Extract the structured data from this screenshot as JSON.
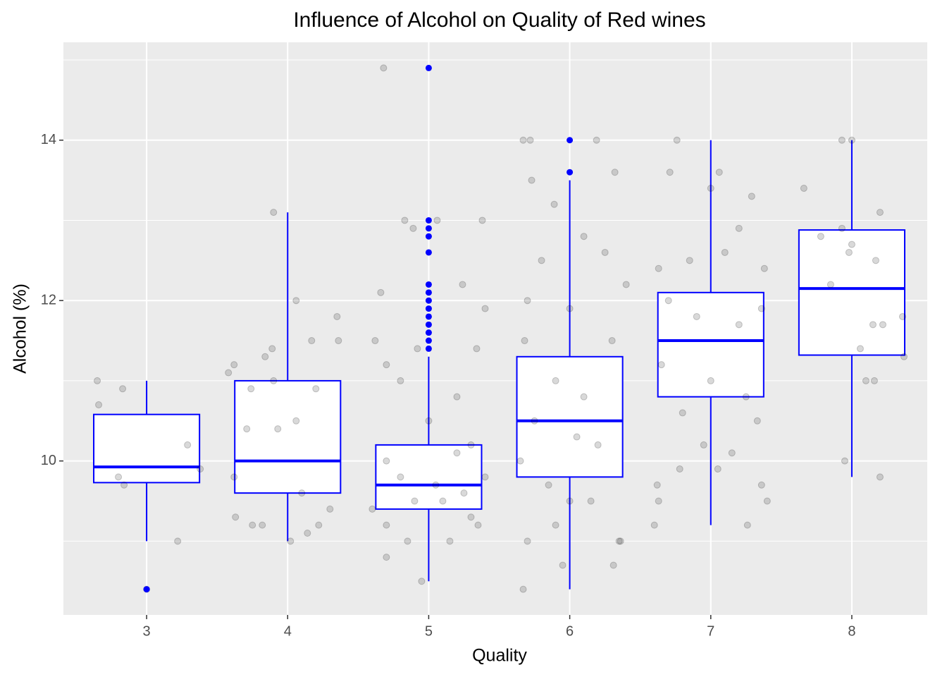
{
  "chart_data": {
    "type": "box",
    "title": "Influence of Alcohol on Quality of Red wines",
    "x_label": "Quality",
    "y_label": "Alcohol (%)",
    "x": [
      3,
      4,
      5,
      6,
      7,
      8
    ],
    "q1": [
      9.73,
      9.6,
      9.4,
      9.8,
      10.8,
      11.32
    ],
    "median": [
      9.925,
      10.0,
      9.7,
      10.5,
      11.5,
      12.15
    ],
    "q3": [
      10.58,
      11.0,
      10.2,
      11.3,
      12.1,
      12.88
    ],
    "whisker_low": [
      9.0,
      9.0,
      8.5,
      8.4,
      9.2,
      9.8
    ],
    "whisker_high": [
      11.0,
      13.1,
      11.3,
      13.5,
      14.0,
      14.0
    ],
    "outliers": [
      [
        8.4
      ],
      [],
      [
        11.4,
        11.5,
        11.6,
        11.7,
        11.8,
        11.9,
        12.0,
        12.1,
        12.2,
        12.6,
        12.8,
        12.9,
        13.0,
        14.9
      ],
      [
        13.6,
        14.0
      ],
      [],
      []
    ],
    "color": "#0000ff",
    "points": {
      "color": "#000000",
      "x": [
        2.65,
        2.66,
        2.83,
        2.8,
        2.84,
        3.29,
        3.22,
        3.38,
        3.0,
        3.58,
        3.62,
        3.84,
        3.89,
        3.9,
        3.9,
        4.06,
        4.17,
        4.35,
        4.36,
        3.71,
        3.93,
        4.06,
        3.74,
        4.2,
        3.62,
        3.75,
        3.82,
        4.1,
        4.14,
        4.22,
        4.3,
        3.63,
        4.02,
        4.68,
        4.66,
        4.83,
        4.89,
        5.06,
        5.38,
        5.24,
        5.4,
        4.7,
        4.62,
        4.8,
        5.0,
        5.2,
        5.3,
        4.7,
        4.9,
        5.1,
        5.3,
        4.7,
        4.85,
        5.15,
        5.35,
        4.95,
        4.7,
        5.2,
        4.8,
        5.05,
        5.25,
        4.6,
        5.4,
        4.92,
        5.34,
        5.67,
        5.72,
        6.19,
        6.32,
        5.73,
        5.89,
        6.4,
        5.8,
        6.1,
        6.25,
        5.7,
        6.0,
        5.68,
        6.3,
        5.9,
        6.1,
        5.75,
        6.2,
        5.65,
        6.0,
        6.35,
        5.7,
        5.9,
        6.15,
        5.95,
        5.67,
        6.31,
        6.36,
        5.85,
        6.05,
        6.76,
        7.0,
        7.06,
        6.71,
        7.29,
        7.2,
        6.63,
        6.85,
        7.1,
        7.38,
        6.7,
        6.9,
        7.2,
        7.36,
        6.65,
        7.0,
        7.25,
        6.8,
        6.95,
        7.15,
        6.78,
        6.62,
        6.6,
        6.63,
        7.26,
        7.36,
        7.4,
        7.33,
        7.05,
        7.66,
        7.93,
        8.0,
        8.2,
        7.78,
        7.93,
        8.0,
        7.98,
        8.17,
        8.15,
        8.22,
        8.36,
        8.37,
        8.06,
        8.1,
        8.16,
        7.95,
        8.2,
        7.85
      ],
      "y": [
        11.0,
        10.7,
        10.9,
        9.8,
        9.7,
        10.2,
        9.0,
        9.9,
        8.4,
        11.1,
        11.2,
        11.3,
        11.4,
        11.0,
        13.1,
        12.0,
        11.5,
        11.8,
        11.5,
        10.4,
        10.4,
        10.5,
        10.9,
        10.9,
        9.8,
        9.2,
        9.2,
        9.6,
        9.1,
        9.2,
        9.4,
        9.3,
        9.0,
        14.9,
        12.1,
        13.0,
        12.9,
        13.0,
        13.0,
        12.2,
        11.9,
        11.2,
        11.5,
        11.0,
        10.5,
        10.8,
        10.2,
        10.0,
        9.5,
        9.5,
        9.3,
        9.2,
        9.0,
        9.0,
        9.2,
        8.5,
        8.8,
        10.1,
        9.8,
        9.7,
        9.6,
        9.4,
        9.8,
        11.4,
        11.4,
        14.0,
        14.0,
        14.0,
        13.6,
        13.5,
        13.2,
        12.2,
        12.5,
        12.8,
        12.6,
        12.0,
        11.9,
        11.5,
        11.5,
        11.0,
        10.8,
        10.5,
        10.2,
        10.0,
        9.5,
        9.0,
        9.0,
        9.2,
        9.5,
        8.7,
        8.4,
        8.7,
        9.0,
        9.7,
        10.3,
        14.0,
        13.4,
        13.6,
        13.6,
        13.3,
        12.9,
        12.4,
        12.5,
        12.6,
        12.4,
        12.0,
        11.8,
        11.7,
        11.9,
        11.2,
        11.0,
        10.8,
        10.6,
        10.2,
        10.1,
        9.9,
        9.7,
        9.2,
        9.5,
        9.2,
        9.7,
        9.5,
        10.5,
        9.9,
        13.4,
        14.0,
        14.0,
        13.1,
        12.8,
        12.9,
        12.7,
        12.6,
        12.5,
        11.7,
        11.7,
        11.8,
        11.3,
        11.4,
        11.0,
        11.0,
        10.0,
        9.8,
        12.2
      ]
    },
    "xlim": [
      2.41,
      8.535
    ],
    "xticks": [
      3,
      4,
      5,
      6,
      7,
      8
    ],
    "ylim": [
      8.08,
      15.22
    ],
    "yticks": [
      10,
      12,
      14
    ],
    "minor_yticks": [
      9,
      11,
      13,
      15
    ],
    "grid": true
  }
}
